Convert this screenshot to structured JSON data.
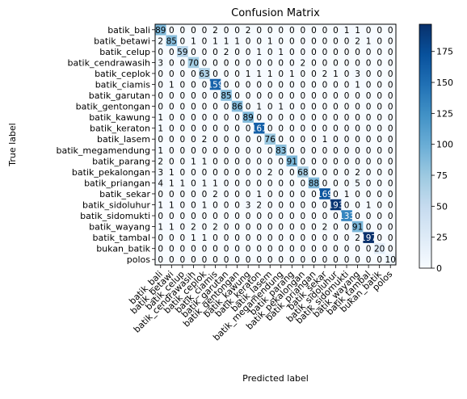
{
  "chart_data": {
    "type": "heatmap",
    "title": "Confusion Matrix",
    "xlabel": "Predicted label",
    "ylabel": "True label",
    "labels": [
      "batik_bali",
      "batik_betawi",
      "batik_celup",
      "batik_cendrawasih",
      "batik_ceplok",
      "batik_ciamis",
      "batik_garutan",
      "batik_gentongan",
      "batik_kawung",
      "batik_keraton",
      "batik_lasem",
      "batik_megamendung",
      "batik_parang",
      "batik_pekalongan",
      "batik_priangan",
      "batik_sekar",
      "batik_sidoluhur",
      "batik_sidomukti",
      "batik_wayang",
      "batik_tambal",
      "bukan_batik",
      "polos"
    ],
    "matrix": [
      [
        89,
        0,
        0,
        0,
        0,
        2,
        0,
        0,
        2,
        0,
        0,
        0,
        0,
        0,
        0,
        0,
        0,
        1,
        1,
        0,
        0,
        0
      ],
      [
        2,
        85,
        0,
        1,
        0,
        1,
        1,
        1,
        0,
        0,
        1,
        0,
        0,
        0,
        0,
        0,
        0,
        0,
        2,
        1,
        0,
        0
      ],
      [
        0,
        0,
        59,
        0,
        0,
        0,
        2,
        0,
        0,
        1,
        0,
        1,
        0,
        0,
        0,
        0,
        0,
        0,
        0,
        0,
        0,
        0
      ],
      [
        3,
        0,
        0,
        70,
        0,
        0,
        0,
        0,
        0,
        0,
        0,
        0,
        0,
        2,
        0,
        0,
        0,
        0,
        0,
        0,
        0,
        0
      ],
      [
        0,
        0,
        0,
        0,
        63,
        0,
        0,
        0,
        1,
        1,
        1,
        0,
        1,
        0,
        0,
        2,
        1,
        0,
        3,
        0,
        0,
        0
      ],
      [
        0,
        1,
        0,
        0,
        0,
        159,
        0,
        0,
        0,
        0,
        0,
        0,
        0,
        0,
        0,
        0,
        0,
        0,
        1,
        0,
        0,
        0
      ],
      [
        0,
        0,
        0,
        0,
        0,
        0,
        85,
        0,
        0,
        0,
        0,
        0,
        0,
        0,
        0,
        0,
        0,
        0,
        0,
        0,
        0,
        0
      ],
      [
        0,
        0,
        0,
        0,
        0,
        0,
        0,
        86,
        0,
        1,
        0,
        1,
        0,
        0,
        0,
        0,
        0,
        0,
        0,
        0,
        0,
        0
      ],
      [
        1,
        0,
        0,
        0,
        0,
        0,
        0,
        0,
        89,
        0,
        0,
        0,
        0,
        0,
        0,
        0,
        0,
        0,
        0,
        0,
        0,
        0
      ],
      [
        1,
        0,
        0,
        0,
        0,
        0,
        0,
        0,
        0,
        161,
        0,
        0,
        0,
        0,
        0,
        0,
        0,
        0,
        0,
        0,
        0,
        0
      ],
      [
        0,
        0,
        0,
        0,
        2,
        0,
        0,
        0,
        0,
        0,
        76,
        0,
        0,
        0,
        0,
        1,
        0,
        0,
        0,
        0,
        0,
        0
      ],
      [
        1,
        0,
        0,
        0,
        0,
        0,
        0,
        0,
        0,
        0,
        0,
        83,
        0,
        0,
        0,
        0,
        0,
        0,
        0,
        0,
        0,
        0
      ],
      [
        2,
        0,
        0,
        1,
        1,
        0,
        0,
        0,
        0,
        0,
        0,
        0,
        91,
        0,
        0,
        0,
        0,
        0,
        0,
        0,
        0,
        0
      ],
      [
        3,
        1,
        0,
        0,
        0,
        0,
        0,
        0,
        0,
        0,
        2,
        0,
        0,
        68,
        0,
        0,
        0,
        0,
        2,
        0,
        0,
        0
      ],
      [
        4,
        1,
        1,
        0,
        1,
        1,
        0,
        0,
        0,
        0,
        0,
        0,
        0,
        0,
        88,
        0,
        0,
        0,
        5,
        0,
        0,
        0
      ],
      [
        0,
        0,
        0,
        0,
        0,
        2,
        0,
        0,
        0,
        1,
        0,
        0,
        0,
        0,
        0,
        169,
        0,
        1,
        0,
        0,
        0,
        0
      ],
      [
        1,
        1,
        0,
        0,
        1,
        0,
        0,
        0,
        3,
        2,
        0,
        0,
        0,
        0,
        0,
        0,
        193,
        0,
        0,
        1,
        0,
        0
      ],
      [
        0,
        0,
        0,
        0,
        0,
        0,
        0,
        0,
        0,
        0,
        0,
        0,
        0,
        0,
        0,
        0,
        0,
        133,
        0,
        0,
        0,
        0
      ],
      [
        1,
        1,
        0,
        2,
        0,
        2,
        0,
        0,
        0,
        0,
        0,
        0,
        0,
        0,
        0,
        2,
        0,
        0,
        91,
        0,
        0,
        0
      ],
      [
        0,
        0,
        0,
        1,
        1,
        0,
        0,
        0,
        0,
        0,
        0,
        0,
        0,
        0,
        0,
        0,
        0,
        0,
        2,
        197,
        0,
        0
      ],
      [
        0,
        0,
        0,
        0,
        0,
        0,
        0,
        0,
        0,
        0,
        0,
        0,
        0,
        0,
        0,
        0,
        0,
        0,
        0,
        0,
        20,
        0
      ],
      [
        0,
        0,
        0,
        0,
        0,
        0,
        0,
        0,
        0,
        0,
        0,
        0,
        0,
        0,
        0,
        0,
        0,
        0,
        0,
        0,
        0,
        10
      ]
    ],
    "vmin": 0,
    "vmax": 197,
    "colormap": "Blues",
    "colorbar_ticks": [
      0,
      25,
      50,
      75,
      100,
      125,
      150,
      175
    ],
    "grid": false
  }
}
